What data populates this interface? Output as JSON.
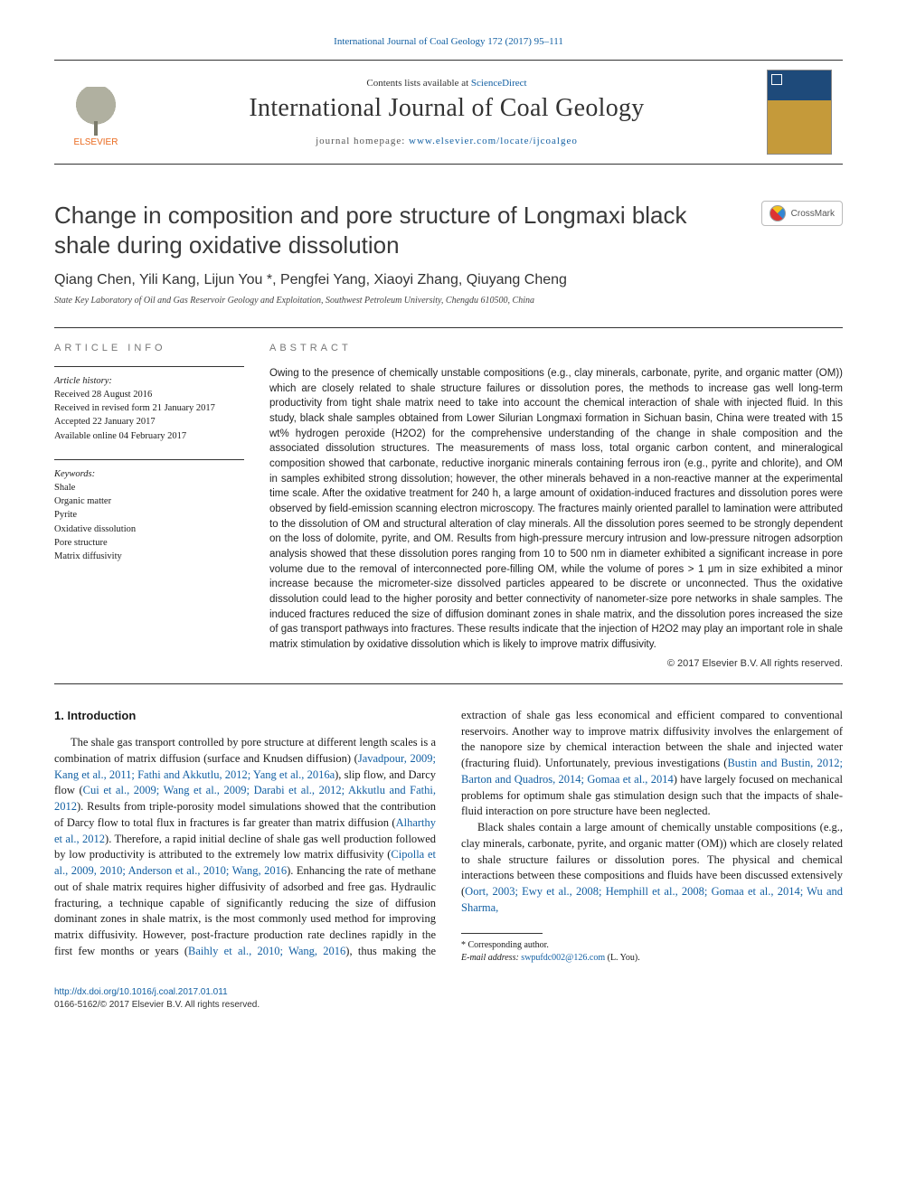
{
  "journal_ref": "International Journal of Coal Geology 172 (2017) 95–111",
  "masthead": {
    "contents_prefix": "Contents lists available at ",
    "contents_link": "ScienceDirect",
    "journal_title": "International Journal of Coal Geology",
    "homepage_prefix": "journal homepage: ",
    "homepage_url": "www.elsevier.com/locate/ijcoalgeo",
    "publisher_label": "ELSEVIER"
  },
  "crossmark_label": "CrossMark",
  "article": {
    "title": "Change in composition and pore structure of Longmaxi black shale during oxidative dissolution",
    "authors_html": "Qiang Chen, Yili Kang, Lijun You *, Pengfei Yang, Xiaoyi Zhang, Qiuyang Cheng",
    "affiliation": "State Key Laboratory of Oil and Gas Reservoir Geology and Exploitation, Southwest Petroleum University, Chengdu 610500, China"
  },
  "info": {
    "heading": "ARTICLE INFO",
    "history_label": "Article history:",
    "history": [
      "Received 28 August 2016",
      "Received in revised form 21 January 2017",
      "Accepted 22 January 2017",
      "Available online 04 February 2017"
    ],
    "keywords_label": "Keywords:",
    "keywords": [
      "Shale",
      "Organic matter",
      "Pyrite",
      "Oxidative dissolution",
      "Pore structure",
      "Matrix diffusivity"
    ]
  },
  "abstract": {
    "heading": "ABSTRACT",
    "text": "Owing to the presence of chemically unstable compositions (e.g., clay minerals, carbonate, pyrite, and organic matter (OM)) which are closely related to shale structure failures or dissolution pores, the methods to increase gas well long-term productivity from tight shale matrix need to take into account the chemical interaction of shale with injected fluid. In this study, black shale samples obtained from Lower Silurian Longmaxi formation in Sichuan basin, China were treated with 15 wt% hydrogen peroxide (H2O2) for the comprehensive understanding of the change in shale composition and the associated dissolution structures. The measurements of mass loss, total organic carbon content, and mineralogical composition showed that carbonate, reductive inorganic minerals containing ferrous iron (e.g., pyrite and chlorite), and OM in samples exhibited strong dissolution; however, the other minerals behaved in a non-reactive manner at the experimental time scale. After the oxidative treatment for 240 h, a large amount of oxidation-induced fractures and dissolution pores were observed by field-emission scanning electron microscopy. The fractures mainly oriented parallel to lamination were attributed to the dissolution of OM and structural alteration of clay minerals. All the dissolution pores seemed to be strongly dependent on the loss of dolomite, pyrite, and OM. Results from high-pressure mercury intrusion and low-pressure nitrogen adsorption analysis showed that these dissolution pores ranging from 10 to 500 nm in diameter exhibited a significant increase in pore volume due to the removal of interconnected pore-filling OM, while the volume of pores > 1 μm in size exhibited a minor increase because the micrometer-size dissolved particles appeared to be discrete or unconnected. Thus the oxidative dissolution could lead to the higher porosity and better connectivity of nanometer-size pore networks in shale samples. The induced fractures reduced the size of diffusion dominant zones in shale matrix, and the dissolution pores increased the size of gas transport pathways into fractures. These results indicate that the injection of H2O2 may play an important role in shale matrix stimulation by oxidative dissolution which is likely to improve matrix diffusivity.",
    "copyright": "© 2017 Elsevier B.V. All rights reserved."
  },
  "body": {
    "section_heading": "1. Introduction",
    "p1a": "The shale gas transport controlled by pore structure at different length scales is a combination of matrix diffusion (surface and Knudsen diffusion) (",
    "p1_ref1": "Javadpour, 2009; Kang et al., 2011; Fathi and Akkutlu, 2012; Yang et al., 2016a",
    "p1b": "), slip flow, and Darcy flow (",
    "p1_ref2": "Cui et al., 2009; Wang et al., 2009; Darabi et al., 2012; Akkutlu and Fathi, 2012",
    "p1c": "). Results from triple-porosity model simulations showed that the contribution of Darcy flow to total flux in fractures is far greater than matrix diffusion (",
    "p1_ref3": "Alharthy et al., 2012",
    "p1d": "). Therefore, a rapid initial decline of shale gas well production followed by low productivity is attributed to the extremely low matrix diffusivity (",
    "p1_ref4": "Cipolla et al., 2009, 2010; Anderson et al., 2010; Wang, 2016",
    "p1e": "). Enhancing the rate of methane out of shale matrix requires higher diffusivity of adsorbed and free gas. Hydraulic fracturing, a technique capable of significantly reducing the size of diffusion",
    "p2a": "dominant zones in shale matrix, is the most commonly used method for improving matrix diffusivity. However, post-fracture production rate declines rapidly in the first few months or years (",
    "p2_ref1": "Baihly et al., 2010; Wang, 2016",
    "p2b": "), thus making the extraction of shale gas less economical and efficient compared to conventional reservoirs. Another way to improve matrix diffusivity involves the enlargement of the nanopore size by chemical interaction between the shale and injected water (fracturing fluid). Unfortunately, previous investigations (",
    "p2_ref2": "Bustin and Bustin, 2012; Barton and Quadros, 2014; Gomaa et al., 2014",
    "p2c": ") have largely focused on mechanical problems for optimum shale gas stimulation design such that the impacts of shale-fluid interaction on pore structure have been neglected.",
    "p3a": "Black shales contain a large amount of chemically unstable compositions (e.g., clay minerals, carbonate, pyrite, and organic matter (OM)) which are closely related to shale structure failures or dissolution pores. The physical and chemical interactions between these compositions and fluids have been discussed extensively (",
    "p3_ref1": "Oort, 2003; Ewy et al., 2008; Hemphill et al., 2008; Gomaa et al., 2014; Wu and Sharma,"
  },
  "footnote": {
    "corresponding": "* Corresponding author.",
    "email_label": "E-mail address:",
    "email": "swpufdc002@126.com",
    "email_name": "(L. You)."
  },
  "footer": {
    "doi": "http://dx.doi.org/10.1016/j.coal.2017.01.011",
    "issn_line": "0166-5162/© 2017 Elsevier B.V. All rights reserved."
  }
}
